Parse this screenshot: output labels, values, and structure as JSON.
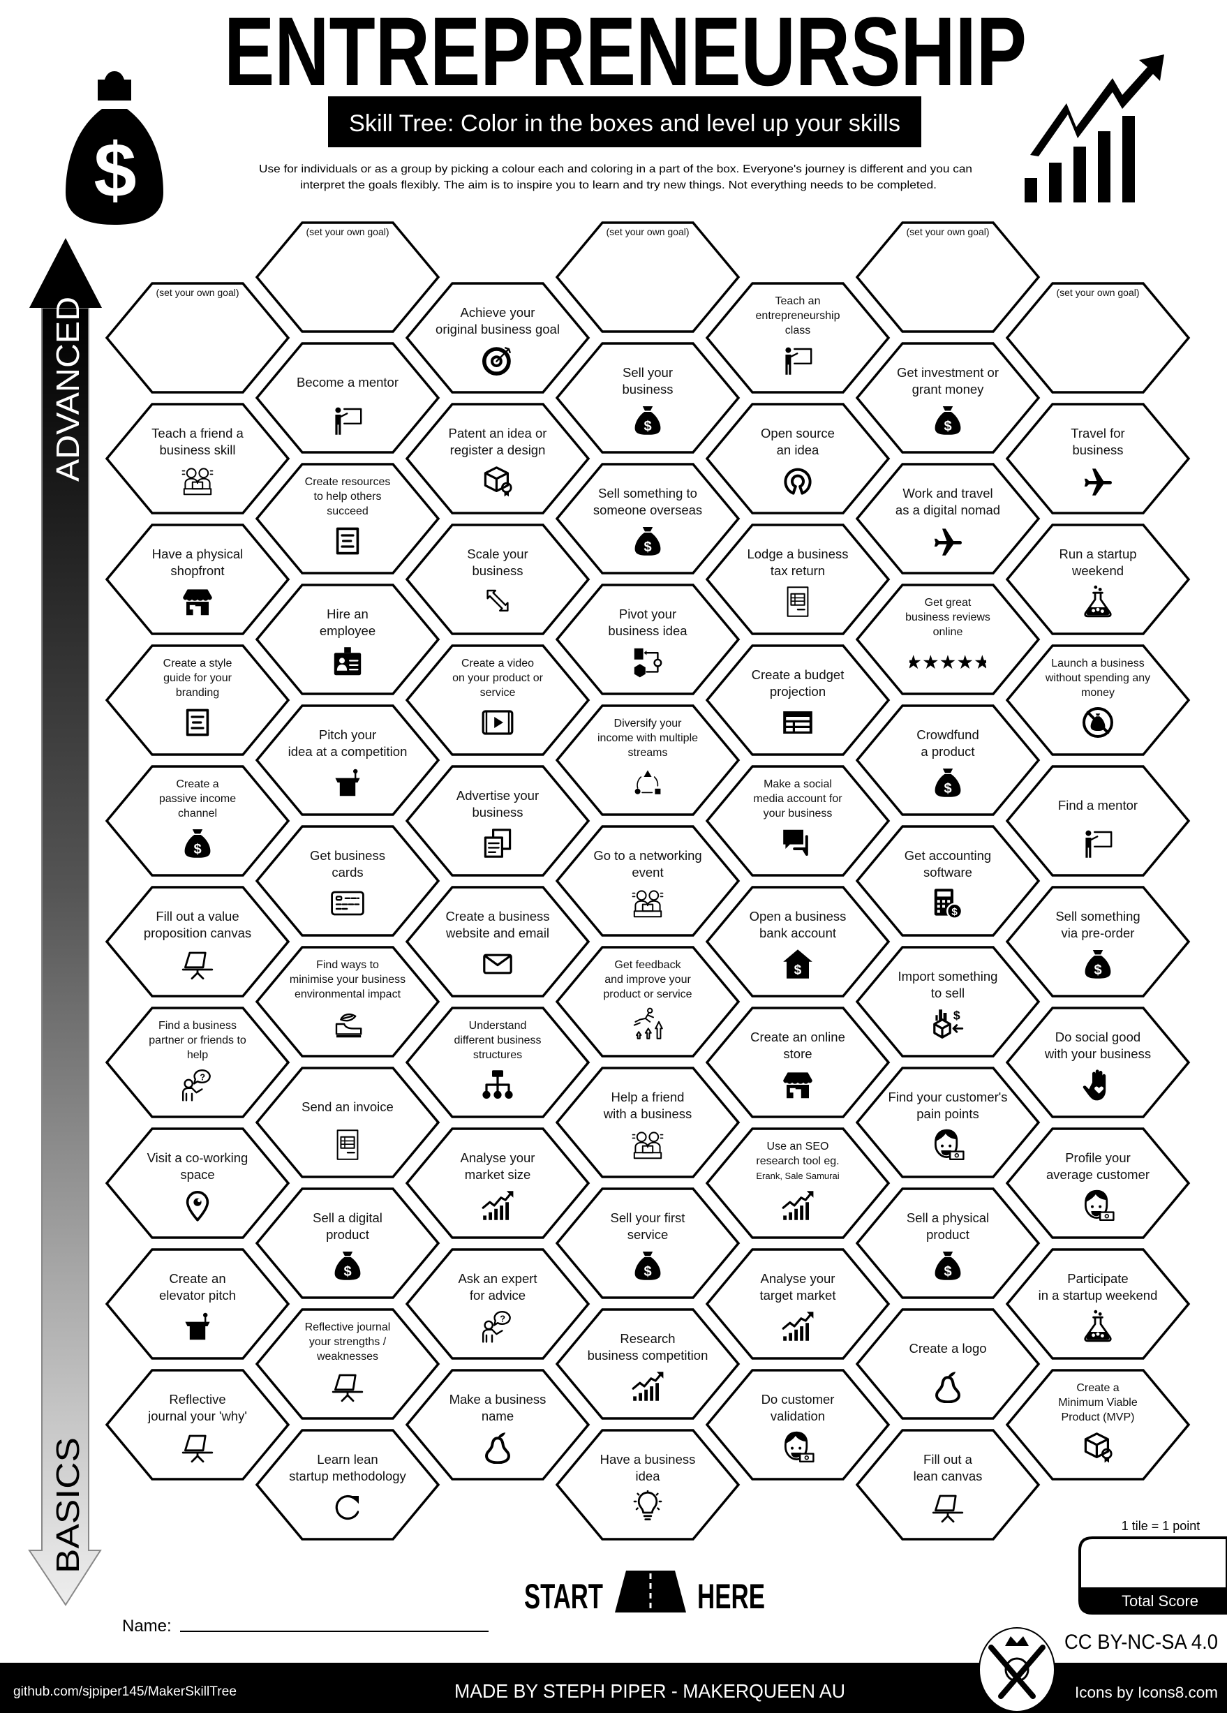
{
  "header": {
    "title": "ENTREPRENEURSHIP",
    "subtitle": "Skill Tree:  Color in the boxes and level up your skills",
    "description_line1": "Use for individuals or as a group by picking a colour each and coloring in a part of the box.  Everyone's journey is different and you can",
    "description_line2": "interpret the goals flexibly.  The aim is to inspire you to learn and try new things. Not everything needs to be completed.",
    "left_icon": "money-bag-icon",
    "right_icon": "growth-chart-icon"
  },
  "axis": {
    "top_label": "ADVANCED",
    "bottom_label": "BASICS"
  },
  "columns": [
    {
      "items": [
        {
          "goal": true,
          "lines": [
            "(set your own goal)"
          ]
        },
        {
          "lines": [
            "Teach a friend a",
            "business skill"
          ],
          "icon": "teamwork"
        },
        {
          "lines": [
            "Have a physical",
            "shopfront"
          ],
          "icon": "shop"
        },
        {
          "lines": [
            "Create a style",
            "guide for your",
            "branding"
          ],
          "icon": "document"
        },
        {
          "lines": [
            "Create a",
            "passive income",
            "channel"
          ],
          "icon": "money-bag"
        },
        {
          "lines": [
            "Fill out a value",
            "proposition canvas"
          ],
          "icon": "easel"
        },
        {
          "lines": [
            "Find a business",
            "partner or friends to",
            "help"
          ],
          "icon": "question-person"
        },
        {
          "lines": [
            "Visit a co-working",
            "space"
          ],
          "icon": "location-pin"
        },
        {
          "lines": [
            "Create an",
            "elevator pitch"
          ],
          "icon": "podium"
        },
        {
          "lines": [
            "Reflective",
            "journal your 'why'"
          ],
          "icon": "easel"
        }
      ]
    },
    {
      "items": [
        {
          "goal": true,
          "lines": [
            "(set your own goal)"
          ]
        },
        {
          "lines": [
            "Become a mentor"
          ],
          "icon": "presentation"
        },
        {
          "lines": [
            "Create resources",
            "to help others",
            "succeed"
          ],
          "icon": "document"
        },
        {
          "lines": [
            "Hire an",
            "employee"
          ],
          "icon": "id-badge"
        },
        {
          "lines": [
            "Pitch your",
            "idea at a competition"
          ],
          "icon": "podium"
        },
        {
          "lines": [
            "Get business",
            "cards"
          ],
          "icon": "business-card"
        },
        {
          "lines": [
            "Find ways to",
            "minimise your business",
            "environmental impact"
          ],
          "icon": "eco"
        },
        {
          "lines": [
            "Send an invoice"
          ],
          "icon": "invoice"
        },
        {
          "lines": [
            "Sell a digital",
            "product"
          ],
          "icon": "money-bag"
        },
        {
          "lines": [
            "Reflective journal",
            "your strengths /",
            "weaknesses"
          ],
          "icon": "easel"
        },
        {
          "lines": [
            "Learn lean",
            "startup methodology"
          ],
          "icon": "refresh"
        }
      ]
    },
    {
      "items": [
        {
          "lines": [
            "Achieve your",
            "original business goal"
          ],
          "icon": "target"
        },
        {
          "lines": [
            "Patent an idea or",
            "register a design"
          ],
          "icon": "box-certificate"
        },
        {
          "lines": [
            "Scale your",
            "business"
          ],
          "icon": "resize"
        },
        {
          "lines": [
            "Create a video",
            "on your product or",
            "service"
          ],
          "icon": "video"
        },
        {
          "lines": [
            "Advertise your",
            "business"
          ],
          "icon": "copy"
        },
        {
          "lines": [
            "Create a business",
            "website and email"
          ],
          "icon": "envelope"
        },
        {
          "lines": [
            "Understand",
            "different business",
            "structures"
          ],
          "icon": "hierarchy"
        },
        {
          "lines": [
            "Analyse your",
            "market size"
          ],
          "icon": "growth"
        },
        {
          "lines": [
            "Ask an expert",
            "for advice"
          ],
          "icon": "question-person"
        },
        {
          "lines": [
            "Make a business",
            "name"
          ],
          "icon": "pear"
        }
      ]
    },
    {
      "items": [
        {
          "goal": true,
          "lines": [
            "(set your own goal)"
          ]
        },
        {
          "lines": [
            "Sell your",
            "business"
          ],
          "icon": "money-bag"
        },
        {
          "lines": [
            "Sell something to",
            "someone overseas"
          ],
          "icon": "money-bag"
        },
        {
          "lines": [
            "Pivot your",
            "business idea"
          ],
          "icon": "pivot"
        },
        {
          "lines": [
            "Diversify your",
            "income with multiple",
            "streams"
          ],
          "icon": "diversify"
        },
        {
          "lines": [
            "Go to a networking",
            "event"
          ],
          "icon": "teamwork"
        },
        {
          "lines": [
            "Get feedback",
            "and improve your",
            "product or service"
          ],
          "icon": "feedback"
        },
        {
          "lines": [
            "Help a friend",
            "with a business"
          ],
          "icon": "teamwork"
        },
        {
          "lines": [
            "Sell your first",
            "service"
          ],
          "icon": "money-bag"
        },
        {
          "lines": [
            "Research",
            "business competition"
          ],
          "icon": "growth"
        },
        {
          "lines": [
            "Have a business",
            "idea"
          ],
          "icon": "lightbulb"
        }
      ]
    },
    {
      "items": [
        {
          "lines": [
            "Teach an",
            "entrepreneurship",
            "class"
          ],
          "icon": "presentation"
        },
        {
          "lines": [
            "Open source",
            "an idea"
          ],
          "icon": "open-source"
        },
        {
          "lines": [
            "Lodge a business",
            "tax return"
          ],
          "icon": "invoice"
        },
        {
          "lines": [
            "Create a budget",
            "projection"
          ],
          "icon": "table"
        },
        {
          "lines": [
            "Make a social",
            "media account for",
            "your business"
          ],
          "icon": "chat"
        },
        {
          "lines": [
            "Open a business",
            "bank account"
          ],
          "icon": "home-dollar"
        },
        {
          "lines": [
            "Create an online",
            "store"
          ],
          "icon": "shop"
        },
        {
          "lines": [
            "Use an SEO",
            "research tool eg.",
            "Erank, Sale Samurai"
          ],
          "icon": "growth"
        },
        {
          "lines": [
            "Analyse your",
            "target market"
          ],
          "icon": "growth"
        },
        {
          "lines": [
            "Do customer",
            "validation"
          ],
          "icon": "customer"
        }
      ]
    },
    {
      "items": [
        {
          "goal": true,
          "lines": [
            "(set your own goal)"
          ]
        },
        {
          "lines": [
            "Get investment or",
            "grant money"
          ],
          "icon": "money-bag"
        },
        {
          "lines": [
            "Work and travel",
            "as a digital nomad"
          ],
          "icon": "airplane"
        },
        {
          "lines": [
            "Get great",
            "business reviews",
            "online"
          ],
          "icon": "stars"
        },
        {
          "lines": [
            "Crowdfund",
            "a product"
          ],
          "icon": "money-bag"
        },
        {
          "lines": [
            "Get accounting",
            "software"
          ],
          "icon": "calculator"
        },
        {
          "lines": [
            "Import something",
            "to sell"
          ],
          "icon": "import"
        },
        {
          "lines": [
            "Find your customer's",
            "pain points"
          ],
          "icon": "customer"
        },
        {
          "lines": [
            "Sell a physical",
            "product"
          ],
          "icon": "money-bag"
        },
        {
          "lines": [
            "Create a logo"
          ],
          "icon": "pear"
        },
        {
          "lines": [
            "Fill out a",
            "lean canvas"
          ],
          "icon": "easel"
        }
      ]
    },
    {
      "items": [
        {
          "goal": true,
          "lines": [
            "(set your own goal)"
          ]
        },
        {
          "lines": [
            "Travel for",
            "business"
          ],
          "icon": "airplane"
        },
        {
          "lines": [
            "Run a startup",
            "weekend"
          ],
          "icon": "flask"
        },
        {
          "lines": [
            "Launch a business",
            "without spending any",
            "money"
          ],
          "icon": "no-money"
        },
        {
          "lines": [
            "Find a mentor"
          ],
          "icon": "presentation"
        },
        {
          "lines": [
            "Sell something",
            "via pre-order"
          ],
          "icon": "money-bag"
        },
        {
          "lines": [
            "Do social good",
            "with your business"
          ],
          "icon": "hand-heart"
        },
        {
          "lines": [
            "Profile your",
            "average customer"
          ],
          "icon": "customer"
        },
        {
          "lines": [
            "Participate",
            "in a startup weekend"
          ],
          "icon": "flask"
        },
        {
          "lines": [
            "Create a",
            "Minimum Viable",
            "Product (MVP)"
          ],
          "icon": "box-certificate"
        }
      ]
    }
  ],
  "start": {
    "left": "START",
    "right": "HERE",
    "icon": "road-icon"
  },
  "score": {
    "rule": "1 tile = 1 point",
    "label": "Total Score"
  },
  "name_label": "Name:",
  "license": "CC BY-NC-SA 4.0",
  "footer": {
    "github": "github.com/sjpiper145/MakerSkillTree",
    "credit": "MADE BY STEPH PIPER  -  MAKERQUEEN AU",
    "icons_credit": "Icons by Icons8.com",
    "logo": "makerqueen-logo"
  },
  "colors": {
    "ink": "#000000",
    "paper": "#ffffff",
    "arrow_fade": "#d8d8d8"
  }
}
